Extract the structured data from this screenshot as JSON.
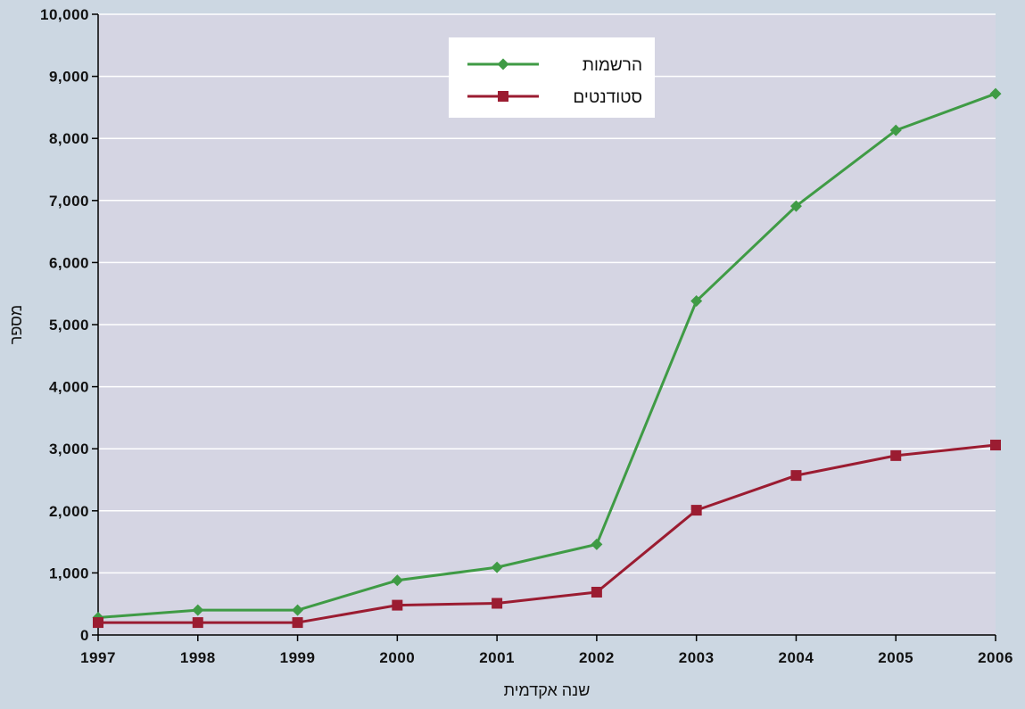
{
  "chart_data": {
    "type": "line",
    "title": "",
    "xlabel": "שנה אקדמית",
    "ylabel": "מספר",
    "x": [
      "1997",
      "1998",
      "1999",
      "2000",
      "2001",
      "2002",
      "2003",
      "2004",
      "2005",
      "2006"
    ],
    "ylim": [
      0,
      10000
    ],
    "yticks": [
      0,
      1000,
      2000,
      3000,
      4000,
      5000,
      6000,
      7000,
      8000,
      9000,
      10000
    ],
    "ytick_labels": [
      "0",
      "1,000",
      "2,000",
      "3,000",
      "4,000",
      "5,000",
      "6,000",
      "7,000",
      "8,000",
      "9,000",
      "10,000"
    ],
    "grid": true,
    "legend_position": "top-center",
    "series": [
      {
        "name": "הרשמות",
        "color": "#3f9b45",
        "marker": "diamond",
        "values": [
          280,
          400,
          400,
          880,
          1090,
          1460,
          5380,
          6910,
          8130,
          8720
        ]
      },
      {
        "name": "סטודנטים",
        "color": "#9b1c31",
        "marker": "square",
        "values": [
          200,
          200,
          200,
          480,
          510,
          690,
          2010,
          2570,
          2890,
          3060
        ]
      }
    ],
    "colors": {
      "plot_background": "#d5d5e3",
      "page_background": "#ccd7e2",
      "gridline": "#ffffff",
      "axis": "#000000"
    }
  }
}
